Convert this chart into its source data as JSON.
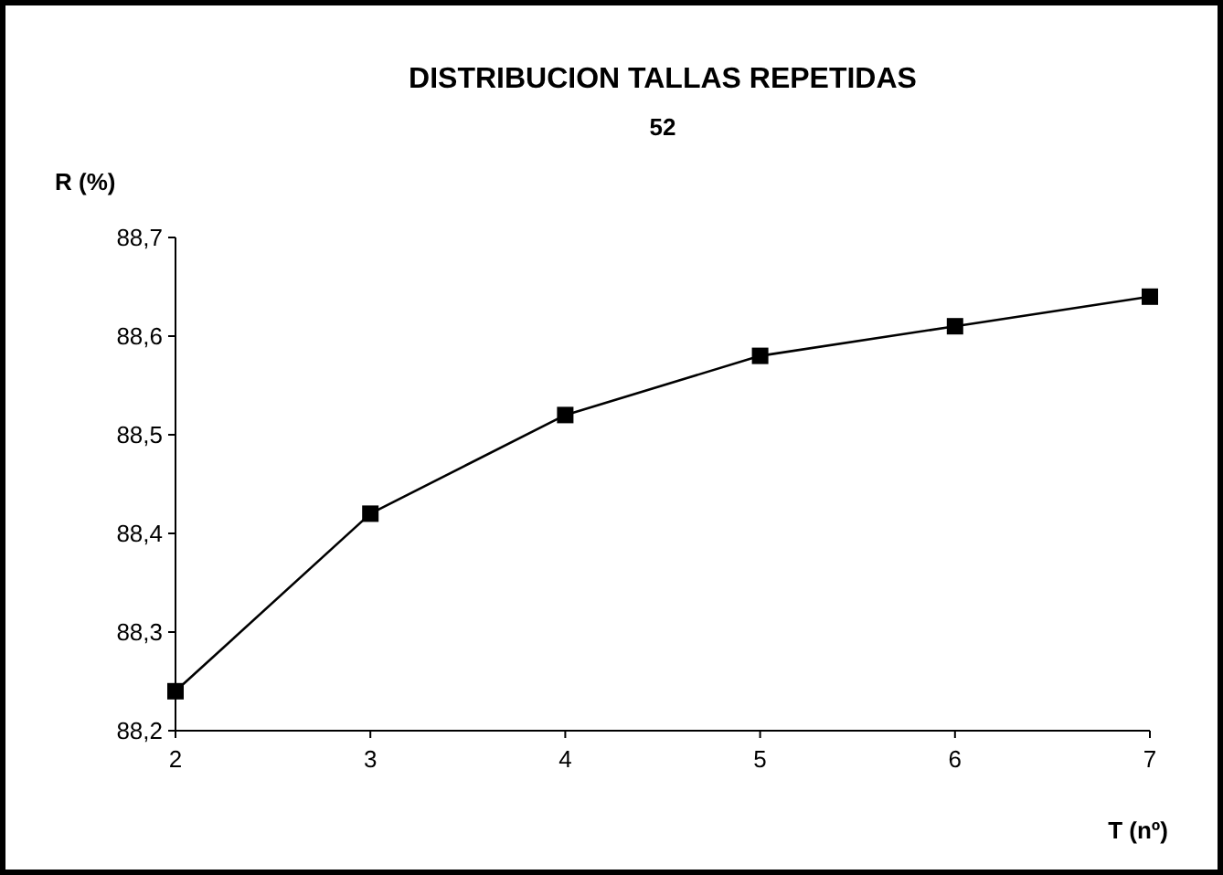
{
  "chart_data": {
    "type": "line",
    "title": "DISTRIBUCION TALLAS REPETIDAS",
    "subtitle": "52",
    "xlabel": "T (nº)",
    "ylabel": "R (%)",
    "x": [
      2,
      3,
      4,
      5,
      6,
      7
    ],
    "series": [
      {
        "color": "#000000",
        "values": [
          88.24,
          88.42,
          88.52,
          88.58,
          88.61,
          88.64
        ]
      }
    ],
    "xlim": [
      2,
      7
    ],
    "xticks": [
      2,
      3,
      4,
      5,
      6,
      7
    ],
    "ylim": [
      88.2,
      88.7
    ],
    "yticks": [
      {
        "value": 88.2,
        "label": "88,2"
      },
      {
        "value": 88.3,
        "label": "88,3"
      },
      {
        "value": 88.4,
        "label": "88,4"
      },
      {
        "value": 88.5,
        "label": "88,5"
      },
      {
        "value": 88.6,
        "label": "88,6"
      },
      {
        "value": 88.7,
        "label": "88,7"
      }
    ],
    "grid": false,
    "marker": "square",
    "line_style": "solid"
  }
}
